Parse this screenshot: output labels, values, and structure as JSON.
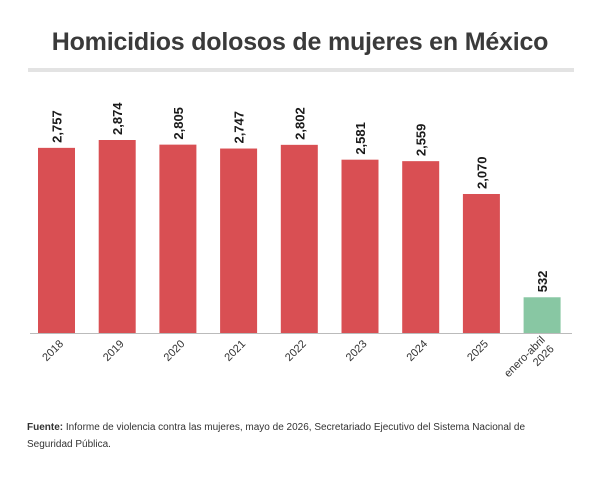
{
  "title": "Homicidios dolosos de mujeres en México",
  "source": {
    "label": "Fuente:",
    "text": "Informe de violencia contra las mujeres, mayo de 2026, Secretariado Ejecutivo del Sistema Nacional de Seguridad Pública."
  },
  "chart_data": {
    "type": "bar",
    "title": "Homicidios dolosos de mujeres en México",
    "xlabel": "",
    "ylabel": "",
    "categories": [
      "2018",
      "2019",
      "2020",
      "2021",
      "2022",
      "2023",
      "2024",
      "2025",
      [
        "enero-abril",
        "2026"
      ]
    ],
    "values": [
      2757,
      2874,
      2805,
      2747,
      2802,
      2581,
      2559,
      2070,
      532
    ],
    "value_labels": [
      "2,757",
      "2,874",
      "2,805",
      "2,747",
      "2,802",
      "2,581",
      "2,559",
      "2,070",
      "532"
    ],
    "ylim": [
      0,
      2874
    ],
    "grid": false,
    "colors": {
      "default": "#d94f53",
      "highlight": "#88c7a3",
      "axis": "#bbbbbb"
    },
    "highlight_index": 8
  }
}
